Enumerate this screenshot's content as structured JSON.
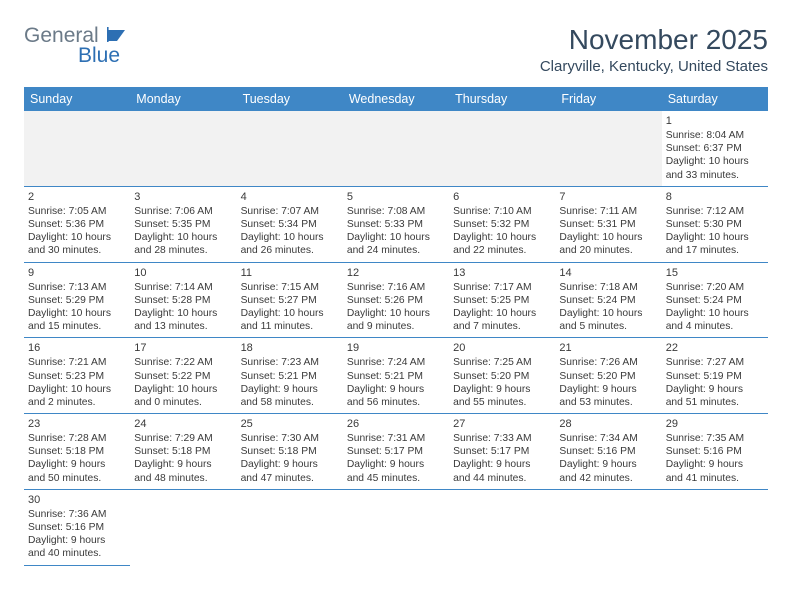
{
  "logo": {
    "text1": "General",
    "text2": "Blue",
    "color1": "#6b7a88",
    "color2": "#2d6fb3",
    "flag_color": "#2d6fb3"
  },
  "title": "November 2025",
  "location": "Claryville, Kentucky, United States",
  "header_bg": "#3f87c6",
  "divider_color": "#3f87c6",
  "blank_bg": "#f2f2f2",
  "text_color": "#3a3a3a",
  "day_headers": [
    "Sunday",
    "Monday",
    "Tuesday",
    "Wednesday",
    "Thursday",
    "Friday",
    "Saturday"
  ],
  "cells": [
    {
      "blank": true
    },
    {
      "blank": true
    },
    {
      "blank": true
    },
    {
      "blank": true
    },
    {
      "blank": true
    },
    {
      "blank": true
    },
    {
      "day": "1",
      "sunrise": "Sunrise: 8:04 AM",
      "sunset": "Sunset: 6:37 PM",
      "daylight1": "Daylight: 10 hours",
      "daylight2": "and 33 minutes."
    },
    {
      "day": "2",
      "sunrise": "Sunrise: 7:05 AM",
      "sunset": "Sunset: 5:36 PM",
      "daylight1": "Daylight: 10 hours",
      "daylight2": "and 30 minutes."
    },
    {
      "day": "3",
      "sunrise": "Sunrise: 7:06 AM",
      "sunset": "Sunset: 5:35 PM",
      "daylight1": "Daylight: 10 hours",
      "daylight2": "and 28 minutes."
    },
    {
      "day": "4",
      "sunrise": "Sunrise: 7:07 AM",
      "sunset": "Sunset: 5:34 PM",
      "daylight1": "Daylight: 10 hours",
      "daylight2": "and 26 minutes."
    },
    {
      "day": "5",
      "sunrise": "Sunrise: 7:08 AM",
      "sunset": "Sunset: 5:33 PM",
      "daylight1": "Daylight: 10 hours",
      "daylight2": "and 24 minutes."
    },
    {
      "day": "6",
      "sunrise": "Sunrise: 7:10 AM",
      "sunset": "Sunset: 5:32 PM",
      "daylight1": "Daylight: 10 hours",
      "daylight2": "and 22 minutes."
    },
    {
      "day": "7",
      "sunrise": "Sunrise: 7:11 AM",
      "sunset": "Sunset: 5:31 PM",
      "daylight1": "Daylight: 10 hours",
      "daylight2": "and 20 minutes."
    },
    {
      "day": "8",
      "sunrise": "Sunrise: 7:12 AM",
      "sunset": "Sunset: 5:30 PM",
      "daylight1": "Daylight: 10 hours",
      "daylight2": "and 17 minutes."
    },
    {
      "day": "9",
      "sunrise": "Sunrise: 7:13 AM",
      "sunset": "Sunset: 5:29 PM",
      "daylight1": "Daylight: 10 hours",
      "daylight2": "and 15 minutes."
    },
    {
      "day": "10",
      "sunrise": "Sunrise: 7:14 AM",
      "sunset": "Sunset: 5:28 PM",
      "daylight1": "Daylight: 10 hours",
      "daylight2": "and 13 minutes."
    },
    {
      "day": "11",
      "sunrise": "Sunrise: 7:15 AM",
      "sunset": "Sunset: 5:27 PM",
      "daylight1": "Daylight: 10 hours",
      "daylight2": "and 11 minutes."
    },
    {
      "day": "12",
      "sunrise": "Sunrise: 7:16 AM",
      "sunset": "Sunset: 5:26 PM",
      "daylight1": "Daylight: 10 hours",
      "daylight2": "and 9 minutes."
    },
    {
      "day": "13",
      "sunrise": "Sunrise: 7:17 AM",
      "sunset": "Sunset: 5:25 PM",
      "daylight1": "Daylight: 10 hours",
      "daylight2": "and 7 minutes."
    },
    {
      "day": "14",
      "sunrise": "Sunrise: 7:18 AM",
      "sunset": "Sunset: 5:24 PM",
      "daylight1": "Daylight: 10 hours",
      "daylight2": "and 5 minutes."
    },
    {
      "day": "15",
      "sunrise": "Sunrise: 7:20 AM",
      "sunset": "Sunset: 5:24 PM",
      "daylight1": "Daylight: 10 hours",
      "daylight2": "and 4 minutes."
    },
    {
      "day": "16",
      "sunrise": "Sunrise: 7:21 AM",
      "sunset": "Sunset: 5:23 PM",
      "daylight1": "Daylight: 10 hours",
      "daylight2": "and 2 minutes."
    },
    {
      "day": "17",
      "sunrise": "Sunrise: 7:22 AM",
      "sunset": "Sunset: 5:22 PM",
      "daylight1": "Daylight: 10 hours",
      "daylight2": "and 0 minutes."
    },
    {
      "day": "18",
      "sunrise": "Sunrise: 7:23 AM",
      "sunset": "Sunset: 5:21 PM",
      "daylight1": "Daylight: 9 hours",
      "daylight2": "and 58 minutes."
    },
    {
      "day": "19",
      "sunrise": "Sunrise: 7:24 AM",
      "sunset": "Sunset: 5:21 PM",
      "daylight1": "Daylight: 9 hours",
      "daylight2": "and 56 minutes."
    },
    {
      "day": "20",
      "sunrise": "Sunrise: 7:25 AM",
      "sunset": "Sunset: 5:20 PM",
      "daylight1": "Daylight: 9 hours",
      "daylight2": "and 55 minutes."
    },
    {
      "day": "21",
      "sunrise": "Sunrise: 7:26 AM",
      "sunset": "Sunset: 5:20 PM",
      "daylight1": "Daylight: 9 hours",
      "daylight2": "and 53 minutes."
    },
    {
      "day": "22",
      "sunrise": "Sunrise: 7:27 AM",
      "sunset": "Sunset: 5:19 PM",
      "daylight1": "Daylight: 9 hours",
      "daylight2": "and 51 minutes."
    },
    {
      "day": "23",
      "sunrise": "Sunrise: 7:28 AM",
      "sunset": "Sunset: 5:18 PM",
      "daylight1": "Daylight: 9 hours",
      "daylight2": "and 50 minutes."
    },
    {
      "day": "24",
      "sunrise": "Sunrise: 7:29 AM",
      "sunset": "Sunset: 5:18 PM",
      "daylight1": "Daylight: 9 hours",
      "daylight2": "and 48 minutes."
    },
    {
      "day": "25",
      "sunrise": "Sunrise: 7:30 AM",
      "sunset": "Sunset: 5:18 PM",
      "daylight1": "Daylight: 9 hours",
      "daylight2": "and 47 minutes."
    },
    {
      "day": "26",
      "sunrise": "Sunrise: 7:31 AM",
      "sunset": "Sunset: 5:17 PM",
      "daylight1": "Daylight: 9 hours",
      "daylight2": "and 45 minutes."
    },
    {
      "day": "27",
      "sunrise": "Sunrise: 7:33 AM",
      "sunset": "Sunset: 5:17 PM",
      "daylight1": "Daylight: 9 hours",
      "daylight2": "and 44 minutes."
    },
    {
      "day": "28",
      "sunrise": "Sunrise: 7:34 AM",
      "sunset": "Sunset: 5:16 PM",
      "daylight1": "Daylight: 9 hours",
      "daylight2": "and 42 minutes."
    },
    {
      "day": "29",
      "sunrise": "Sunrise: 7:35 AM",
      "sunset": "Sunset: 5:16 PM",
      "daylight1": "Daylight: 9 hours",
      "daylight2": "and 41 minutes."
    },
    {
      "day": "30",
      "sunrise": "Sunrise: 7:36 AM",
      "sunset": "Sunset: 5:16 PM",
      "daylight1": "Daylight: 9 hours",
      "daylight2": "and 40 minutes."
    }
  ]
}
